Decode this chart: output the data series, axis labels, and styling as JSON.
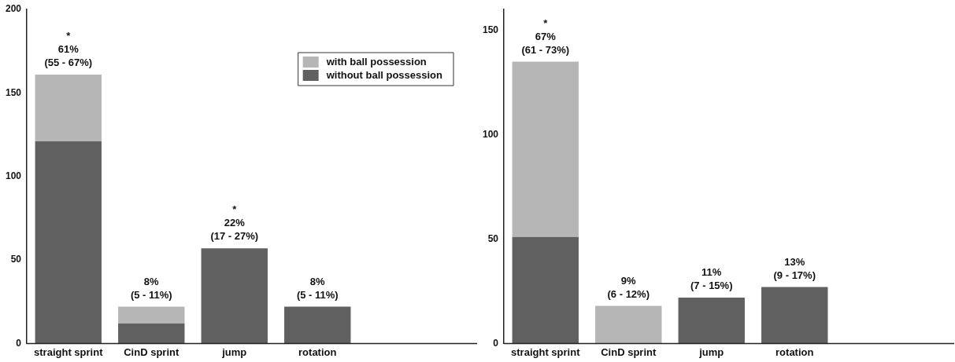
{
  "chart_data": [
    {
      "type": "bar",
      "stacked": true,
      "categories": [
        "straight sprint",
        "CinD sprint",
        "jump",
        "rotation"
      ],
      "series": [
        {
          "name": "without ball possession",
          "color": "#606060",
          "values": [
            121,
            12,
            57,
            22
          ]
        },
        {
          "name": "with ball possession",
          "color": "#b6b6b6",
          "values": [
            40,
            10,
            0,
            0
          ]
        }
      ],
      "ylim": [
        0,
        200
      ],
      "yticks": [
        0,
        50,
        100,
        150,
        200
      ],
      "legend": "top right",
      "annotations": [
        {
          "text": "*\n61%\n(55 - 67%)",
          "x": "straight sprint",
          "y": 161
        },
        {
          "text": "8%\n(5 - 11%)",
          "x": "CinD sprint",
          "y": 22
        },
        {
          "text": "*\n22%\n(17 - 27%)",
          "x": "jump",
          "y": 57
        },
        {
          "text": "8%\n(5 - 11%)",
          "x": "rotation",
          "y": 22
        }
      ]
    },
    {
      "type": "bar",
      "stacked": true,
      "categories": [
        "straight sprint",
        "CinD sprint",
        "jump",
        "rotation"
      ],
      "series": [
        {
          "color": "#606060",
          "values": [
            51,
            0,
            22,
            27
          ]
        },
        {
          "color": "#b6b6b6",
          "values": [
            84,
            18,
            0,
            0
          ]
        }
      ],
      "ylim": [
        0,
        160
      ],
      "yticks": [
        0,
        50,
        100,
        150
      ],
      "annotations": [
        {
          "text": "*\n67%\n(61 - 73%)",
          "x": "straight sprint",
          "y": 135
        },
        {
          "text": "9%\n(6 - 12%)",
          "x": "CinD sprint",
          "y": 18
        },
        {
          "text": "11%\n(7 - 15%)",
          "x": "jump",
          "y": 22
        },
        {
          "text": "13%\n(9 - 17%)",
          "x": "rotation",
          "y": 27
        }
      ]
    }
  ]
}
